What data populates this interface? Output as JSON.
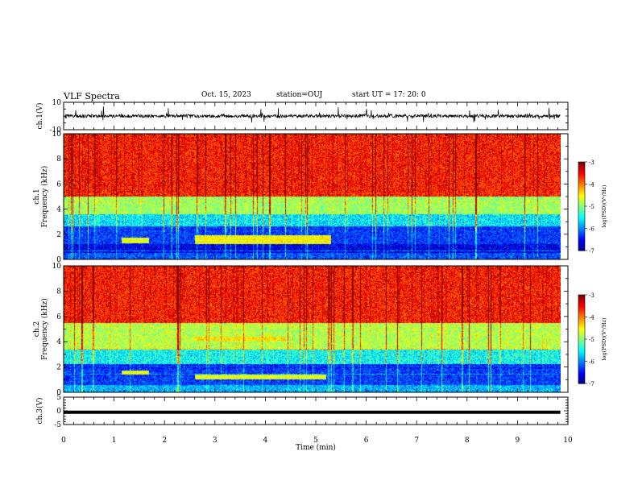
{
  "header": {
    "title": "VLF Spectra",
    "date": "Oct. 15, 2023",
    "station": "station=OUJ",
    "start": "start  UT =   17: 20: 0"
  },
  "chart_data": [
    {
      "type": "line",
      "panel": "ch1-waveform",
      "ylabel": "ch.1(V)",
      "ylim": [
        -10,
        10
      ],
      "yticks": [
        10,
        -10
      ],
      "x_range_min": [
        0,
        9.85
      ],
      "description_of_values": "noisy waveform around 0 V with spikes to about ±6 V"
    },
    {
      "type": "heatmap",
      "panel": "ch1-spectrogram",
      "ylabel": "ch.1\nFrequency (kHz)",
      "ylim": [
        0,
        10
      ],
      "yticks": [
        0,
        2,
        4,
        6,
        8,
        10
      ],
      "x_range_min": [
        0,
        9.85
      ],
      "colorbar": {
        "label": "log(PSD)(V²/Hz)",
        "range": [
          -7,
          -3
        ],
        "ticks": [
          -3,
          -4,
          -5,
          -6,
          -7
        ]
      },
      "bands": [
        {
          "f_min": 0.0,
          "f_max": 0.5,
          "level": -6.2
        },
        {
          "f_min": 0.5,
          "f_max": 1.2,
          "level": -6.6
        },
        {
          "f_min": 1.2,
          "f_max": 2.6,
          "level": -6.3
        },
        {
          "f_min": 2.6,
          "f_max": 3.6,
          "level": -5.6
        },
        {
          "f_min": 3.6,
          "f_max": 5.0,
          "level": -4.9
        },
        {
          "f_min": 5.0,
          "f_max": 10.0,
          "level": -3.6
        }
      ],
      "features": [
        {
          "t_start": 2.6,
          "t_end": 5.3,
          "f_min": 1.2,
          "f_max": 1.9,
          "level": -4.5
        },
        {
          "t_start": 1.15,
          "t_end": 1.7,
          "f_min": 1.3,
          "f_max": 1.7,
          "level": -4.6
        }
      ]
    },
    {
      "type": "heatmap",
      "panel": "ch2-spectrogram",
      "ylabel": "ch.2\nFrequency (kHz)",
      "ylim": [
        0,
        10
      ],
      "yticks": [
        0,
        2,
        4,
        6,
        8,
        10
      ],
      "x_range_min": [
        0,
        9.85
      ],
      "colorbar": {
        "label": "log(PSD)(V²/Hz)",
        "range": [
          -7,
          -3
        ],
        "ticks": [
          -3,
          -4,
          -5,
          -6,
          -7
        ]
      },
      "bands": [
        {
          "f_min": 0.0,
          "f_max": 0.6,
          "level": -5.8
        },
        {
          "f_min": 0.6,
          "f_max": 2.2,
          "level": -6.3
        },
        {
          "f_min": 2.2,
          "f_max": 3.4,
          "level": -5.5
        },
        {
          "f_min": 3.4,
          "f_max": 5.5,
          "level": -4.8
        },
        {
          "f_min": 5.5,
          "f_max": 10.0,
          "level": -3.6
        }
      ],
      "features": [
        {
          "t_start": 2.6,
          "t_end": 5.2,
          "f_min": 1.0,
          "f_max": 1.4,
          "level": -4.6
        },
        {
          "t_start": 2.6,
          "t_end": 4.4,
          "f_min": 4.1,
          "f_max": 4.4,
          "level": -4.4
        },
        {
          "t_start": 1.15,
          "t_end": 1.7,
          "f_min": 1.4,
          "f_max": 1.7,
          "level": -4.6
        }
      ]
    },
    {
      "type": "line",
      "panel": "ch3-waveform",
      "ylabel": "ch.3(V)",
      "ylim": [
        -5,
        5
      ],
      "yticks": [
        5,
        0,
        -5
      ],
      "x_range_min": [
        0,
        9.85
      ],
      "level": -0.5,
      "xlabel": "Time  (min)",
      "xlim": [
        0,
        10
      ],
      "xticks": [
        0,
        1,
        2,
        3,
        4,
        5,
        6,
        7,
        8,
        9,
        10
      ]
    }
  ]
}
